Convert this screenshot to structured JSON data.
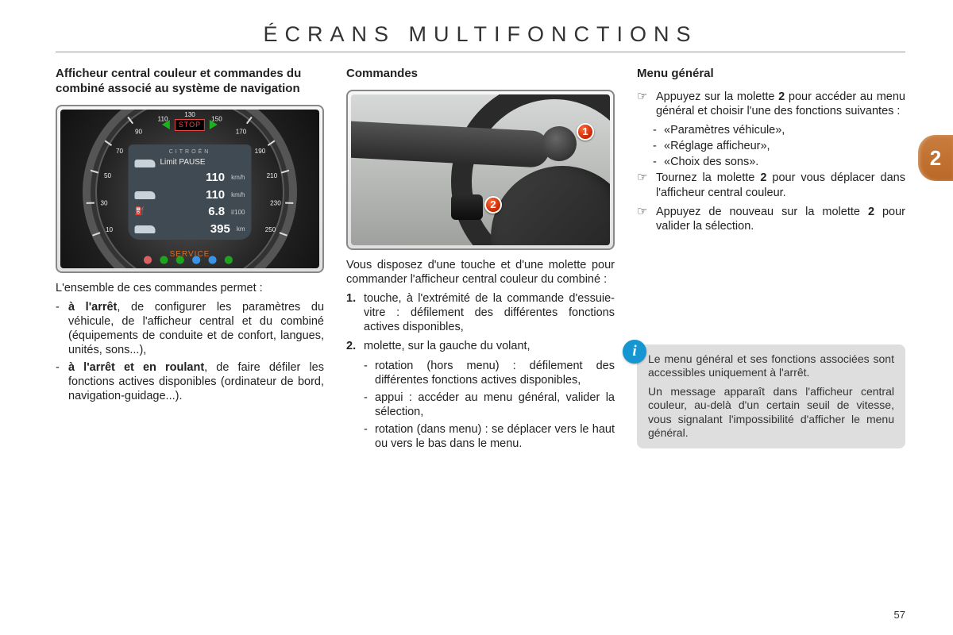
{
  "page": {
    "title": "ÉCRANS MULTIFONCTIONS",
    "number": "57",
    "chapter_tab": "2"
  },
  "left": {
    "heading": "Afficheur central couleur et commandes du combiné associé au système de navigation",
    "intro": "L'ensemble de ces commandes permet :",
    "bullets": [
      {
        "bold": "à l'arrêt",
        "rest": ", de configurer les paramètres du véhicule, de l'afficheur central et du combiné (équipements de conduite et de confort, langues, unités, sons...),"
      },
      {
        "bold": "à l'arrêt et en roulant",
        "rest": ", de faire défiler les fonctions actives disponibles (ordinateur de bord, navigation-guidage...)."
      }
    ],
    "speedo": {
      "brand": "CITROËN",
      "stop": "STOP",
      "limit_label": "Limit PAUSE",
      "limit_value": "110",
      "limit_unit": "km/h",
      "speed_value": "110",
      "speed_unit": "km/h",
      "cons_value": "6.8",
      "cons_unit": "l/100",
      "range_value": "395",
      "range_unit": "km",
      "service": "SERVICE",
      "tick_labels": [
        "10",
        "30",
        "50",
        "70",
        "90",
        "110",
        "130",
        "150",
        "170",
        "190",
        "210",
        "230",
        "250"
      ],
      "colors": {
        "bg": "#222222",
        "lcd": "#3f4a52",
        "service": "#e06a1a",
        "arrow_green": "#1eb01e",
        "stop_red": "#e44"
      }
    }
  },
  "middle": {
    "heading": "Commandes",
    "intro": "Vous disposez d'une touche et d'une molette pour commander l'afficheur central couleur du combiné :",
    "items": [
      {
        "n": "1.",
        "text": "touche, à l'extrémité de la commande d'essuie-vitre : défilement des différentes fonctions actives disponibles,"
      },
      {
        "n": "2.",
        "text": "molette, sur la gauche du volant,",
        "sub": [
          "rotation (hors menu) : défilement des différentes fonctions actives disponibles,",
          "appui : accéder au menu général, valider la sélection,",
          "rotation (dans menu) : se déplacer vers le haut ou vers le bas dans le menu."
        ]
      }
    ],
    "badges": {
      "one": "1",
      "two": "2"
    }
  },
  "right": {
    "heading": "Menu général",
    "points": [
      {
        "text_before": "Appuyez sur la molette ",
        "bold": "2",
        "text_after": " pour accéder au menu général et choisir l'une des fonctions suivantes :",
        "sub": [
          "«Paramètres véhicule»,",
          "«Réglage afficheur»,",
          "«Choix des sons»."
        ]
      },
      {
        "text_before": "Tournez la molette ",
        "bold": "2",
        "text_after": " pour vous déplacer dans l'afficheur central couleur."
      },
      {
        "text_before": "Appuyez de nouveau sur la molette ",
        "bold": "2",
        "text_after": " pour valider la sélection."
      }
    ],
    "info": {
      "p1": "Le menu général et ses fonctions associées sont accessibles uniquement à l'arrêt.",
      "p2": "Un message apparaît dans l'afficheur central couleur, au-delà d'un certain seuil de vitesse, vous signalant l'impossibilité d'afficher le menu général."
    }
  },
  "colors": {
    "tab_bg": "#b96826",
    "info_bg": "#dedede",
    "info_icon": "#1596d1",
    "badge": "#c62700"
  }
}
